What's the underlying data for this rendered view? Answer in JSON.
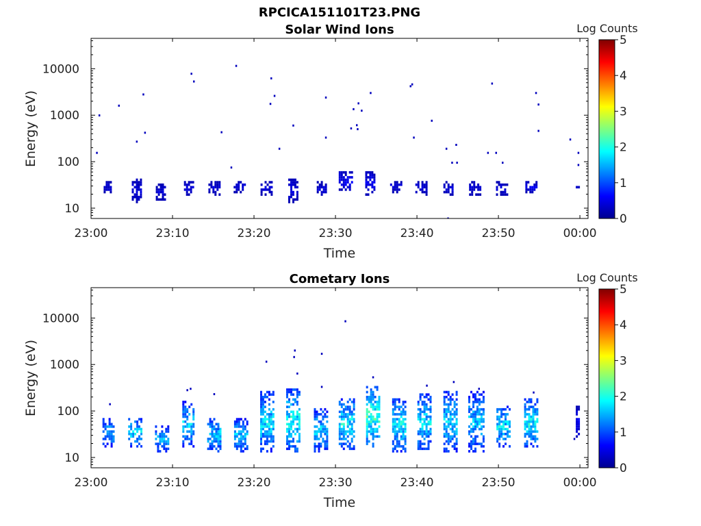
{
  "figure": {
    "suptitle": "RPCICA151101T23.PNG"
  },
  "colors": {
    "colormap": "jet",
    "frame": "#000000",
    "background": "#ffffff"
  },
  "chart_data": [
    {
      "type": "heatmap",
      "title": "Solar Wind Ions",
      "xlabel": "Time",
      "ylabel": "Energy (eV)",
      "y_scale": "log",
      "ylim": [
        6,
        45000
      ],
      "xlim": [
        "23:00",
        "00:01"
      ],
      "x_tick_labels": [
        "23:00",
        "23:10",
        "23:20",
        "23:30",
        "23:40",
        "23:50",
        "00:00"
      ],
      "x_tick_minutes": [
        0,
        10,
        20,
        30,
        40,
        50,
        60
      ],
      "y_ticks": [
        10,
        100,
        1000,
        10000
      ],
      "y_tick_labels": [
        "10",
        "100",
        "1000",
        "10000"
      ],
      "colorbar": {
        "label": "Log Counts",
        "min": 0,
        "max": 5,
        "ticks": [
          "0",
          "1",
          "2",
          "3",
          "4",
          "5"
        ]
      },
      "x_unit": "minutes after 23:00",
      "bursts": [
        {
          "t": 2.0,
          "w": 0.9,
          "lo": 19,
          "hi": 38,
          "c": 0.45
        },
        {
          "t": 5.6,
          "w": 1.2,
          "lo": 12,
          "hi": 42,
          "c": 0.5
        },
        {
          "t": 8.6,
          "w": 1.3,
          "lo": 13,
          "hi": 32,
          "c": 0.45
        },
        {
          "t": 12.0,
          "w": 1.2,
          "lo": 17,
          "hi": 38,
          "c": 0.45
        },
        {
          "t": 15.2,
          "w": 1.6,
          "lo": 18,
          "hi": 38,
          "c": 0.45
        },
        {
          "t": 18.3,
          "w": 1.6,
          "lo": 19,
          "hi": 38,
          "c": 0.45
        },
        {
          "t": 21.6,
          "w": 1.6,
          "lo": 18,
          "hi": 38,
          "c": 0.45
        },
        {
          "t": 24.8,
          "w": 1.2,
          "lo": 12,
          "hi": 45,
          "c": 0.5
        },
        {
          "t": 28.3,
          "w": 1.2,
          "lo": 17,
          "hi": 35,
          "c": 0.45
        },
        {
          "t": 31.3,
          "w": 1.8,
          "lo": 22,
          "hi": 60,
          "c": 0.6
        },
        {
          "t": 34.3,
          "w": 1.3,
          "lo": 18,
          "hi": 60,
          "c": 0.55
        },
        {
          "t": 37.5,
          "w": 1.6,
          "lo": 19,
          "hi": 38,
          "c": 0.45
        },
        {
          "t": 40.6,
          "w": 1.6,
          "lo": 18,
          "hi": 38,
          "c": 0.45
        },
        {
          "t": 43.9,
          "w": 1.3,
          "lo": 17,
          "hi": 38,
          "c": 0.45
        },
        {
          "t": 47.2,
          "w": 1.6,
          "lo": 17,
          "hi": 38,
          "c": 0.45
        },
        {
          "t": 50.5,
          "w": 1.6,
          "lo": 17,
          "hi": 38,
          "c": 0.45
        },
        {
          "t": 54.1,
          "w": 1.6,
          "lo": 19,
          "hi": 38,
          "c": 0.5
        },
        {
          "t": 59.7,
          "w": 0.4,
          "lo": 22,
          "hi": 28,
          "c": 0.45
        }
      ],
      "points": [
        [
          1.0,
          990
        ],
        [
          0.7,
          155
        ],
        [
          3.4,
          1600
        ],
        [
          5.6,
          270
        ],
        [
          6.4,
          2800
        ],
        [
          6.6,
          420
        ],
        [
          12.3,
          7800
        ],
        [
          12.6,
          5300
        ],
        [
          16.0,
          430
        ],
        [
          17.2,
          75
        ],
        [
          17.8,
          11500
        ],
        [
          22.0,
          1750
        ],
        [
          22.1,
          6200
        ],
        [
          22.5,
          2600
        ],
        [
          23.1,
          190
        ],
        [
          24.8,
          600
        ],
        [
          28.8,
          330
        ],
        [
          28.8,
          2400
        ],
        [
          31.9,
          520
        ],
        [
          32.2,
          1350
        ],
        [
          32.6,
          610
        ],
        [
          32.7,
          500
        ],
        [
          32.8,
          1800
        ],
        [
          33.2,
          1250
        ],
        [
          34.3,
          3000
        ],
        [
          39.2,
          4200
        ],
        [
          39.4,
          4600
        ],
        [
          39.6,
          330
        ],
        [
          41.8,
          760
        ],
        [
          43.6,
          190
        ],
        [
          43.8,
          6
        ],
        [
          44.3,
          95
        ],
        [
          44.8,
          230
        ],
        [
          44.9,
          95
        ],
        [
          48.7,
          155
        ],
        [
          49.2,
          4800
        ],
        [
          49.7,
          155
        ],
        [
          50.5,
          95
        ],
        [
          54.6,
          3000
        ],
        [
          54.9,
          1700
        ],
        [
          54.9,
          460
        ],
        [
          58.8,
          300
        ],
        [
          59.8,
          155
        ],
        [
          59.8,
          85
        ]
      ]
    },
    {
      "type": "heatmap",
      "title": "Cometary Ions",
      "xlabel": "Time",
      "ylabel": "Energy (eV)",
      "y_scale": "log",
      "ylim": [
        6,
        45000
      ],
      "xlim": [
        "23:00",
        "00:01"
      ],
      "x_tick_labels": [
        "23:00",
        "23:10",
        "23:20",
        "23:30",
        "23:40",
        "23:50",
        "00:00"
      ],
      "x_tick_minutes": [
        0,
        10,
        20,
        30,
        40,
        50,
        60
      ],
      "y_ticks": [
        10,
        100,
        1000,
        10000
      ],
      "y_tick_labels": [
        "10",
        "100",
        "1000",
        "10000"
      ],
      "colorbar": {
        "label": "Log Counts",
        "min": 0,
        "max": 5,
        "ticks": [
          "0",
          "1",
          "2",
          "3",
          "4",
          "5"
        ]
      },
      "x_unit": "minutes after 23:00",
      "bursts": [
        {
          "t": 2.2,
          "w": 1.6,
          "lo": 16,
          "hi": 65,
          "c": 1.6
        },
        {
          "t": 5.4,
          "w": 1.7,
          "lo": 15,
          "hi": 70,
          "c": 1.8
        },
        {
          "t": 8.7,
          "w": 1.7,
          "lo": 12,
          "hi": 45,
          "c": 1.6
        },
        {
          "t": 12.0,
          "w": 1.6,
          "lo": 15,
          "hi": 160,
          "c": 1.7
        },
        {
          "t": 15.1,
          "w": 1.7,
          "lo": 12,
          "hi": 70,
          "c": 1.7
        },
        {
          "t": 18.4,
          "w": 1.7,
          "lo": 12,
          "hi": 65,
          "c": 1.6
        },
        {
          "t": 21.6,
          "w": 1.7,
          "lo": 12,
          "hi": 240,
          "c": 1.8
        },
        {
          "t": 24.8,
          "w": 1.7,
          "lo": 12,
          "hi": 300,
          "c": 2.0
        },
        {
          "t": 28.2,
          "w": 1.7,
          "lo": 12,
          "hi": 110,
          "c": 1.7
        },
        {
          "t": 31.4,
          "w": 2.0,
          "lo": 13,
          "hi": 180,
          "c": 1.9
        },
        {
          "t": 34.6,
          "w": 1.7,
          "lo": 15,
          "hi": 330,
          "c": 2.2
        },
        {
          "t": 37.8,
          "w": 1.7,
          "lo": 12,
          "hi": 170,
          "c": 1.9
        },
        {
          "t": 40.9,
          "w": 1.7,
          "lo": 13,
          "hi": 220,
          "c": 1.8
        },
        {
          "t": 44.1,
          "w": 1.7,
          "lo": 12,
          "hi": 250,
          "c": 1.8
        },
        {
          "t": 47.3,
          "w": 2.0,
          "lo": 12,
          "hi": 240,
          "c": 1.7
        },
        {
          "t": 50.6,
          "w": 1.7,
          "lo": 15,
          "hi": 130,
          "c": 1.8
        },
        {
          "t": 54.0,
          "w": 1.7,
          "lo": 15,
          "hi": 180,
          "c": 1.9
        },
        {
          "t": 59.7,
          "w": 0.4,
          "lo": 24,
          "hi": 120,
          "c": 0.6
        }
      ],
      "points": [
        [
          2.3,
          140
        ],
        [
          11.8,
          280
        ],
        [
          12.2,
          300
        ],
        [
          15.1,
          230
        ],
        [
          21.5,
          1150
        ],
        [
          24.9,
          1450
        ],
        [
          25.0,
          2000
        ],
        [
          25.3,
          640
        ],
        [
          28.3,
          1700
        ],
        [
          31.2,
          8500
        ],
        [
          28.3,
          330
        ],
        [
          34.6,
          530
        ],
        [
          41.2,
          350
        ],
        [
          44.5,
          420
        ],
        [
          47.6,
          300
        ],
        [
          54.3,
          250
        ],
        [
          59.3,
          25
        ]
      ]
    }
  ]
}
